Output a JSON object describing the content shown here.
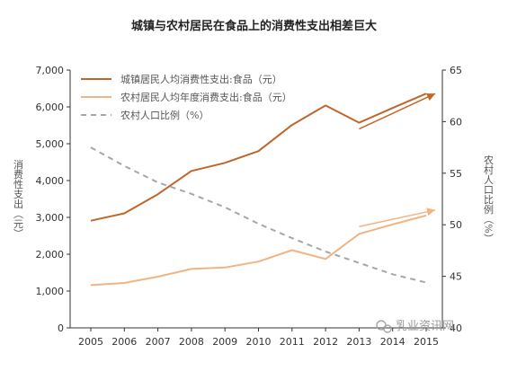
{
  "title": "城镇与农村居民在食品上的消费性支出相差巨大",
  "watermark": "乳业资讯网",
  "colors": {
    "urban": "#C0662A",
    "rural": "#F0B482",
    "ratio": "#A6A6A6",
    "axis": "#333333"
  },
  "chart_data": {
    "type": "line",
    "categories": [
      "2005",
      "2006",
      "2007",
      "2008",
      "2009",
      "2010",
      "2011",
      "2012",
      "2013",
      "2014",
      "2015"
    ],
    "ylabel_left": "消费性支出（元）",
    "ylabel_right": "农村人口比例（%）",
    "ylim_left": [
      0,
      7000
    ],
    "ylim_right": [
      40,
      65
    ],
    "yticks_left": [
      "0",
      "1,000",
      "2,000",
      "3,000",
      "4,000",
      "5,000",
      "6,000",
      "7,000"
    ],
    "yticks_right": [
      "40",
      "45",
      "50",
      "55",
      "60",
      "65"
    ],
    "legend_position": "top-left",
    "series": [
      {
        "name": "城镇居民人均消费性支出:食品（元）",
        "axis": "left",
        "values": [
          2910,
          3110,
          3630,
          4260,
          4480,
          4800,
          5510,
          6040,
          5570,
          5970,
          6360
        ],
        "trend_arrow": {
          "from": [
            2013,
            5400
          ],
          "to": [
            2015,
            6360
          ]
        }
      },
      {
        "name": "农村居民人均年度消费支出:食品（元）",
        "axis": "left",
        "values": [
          1160,
          1220,
          1390,
          1600,
          1640,
          1800,
          2110,
          1870,
          2550,
          2810,
          3050
        ],
        "trend_arrow": {
          "from": [
            2013,
            2750
          ],
          "to": [
            2015,
            3200
          ]
        }
      },
      {
        "name": "农村人口比例（%）",
        "axis": "right",
        "style": "dashed",
        "values": [
          57.5,
          55.7,
          54.1,
          53.0,
          51.7,
          50.1,
          48.7,
          47.4,
          46.3,
          45.2,
          44.4
        ]
      }
    ]
  }
}
